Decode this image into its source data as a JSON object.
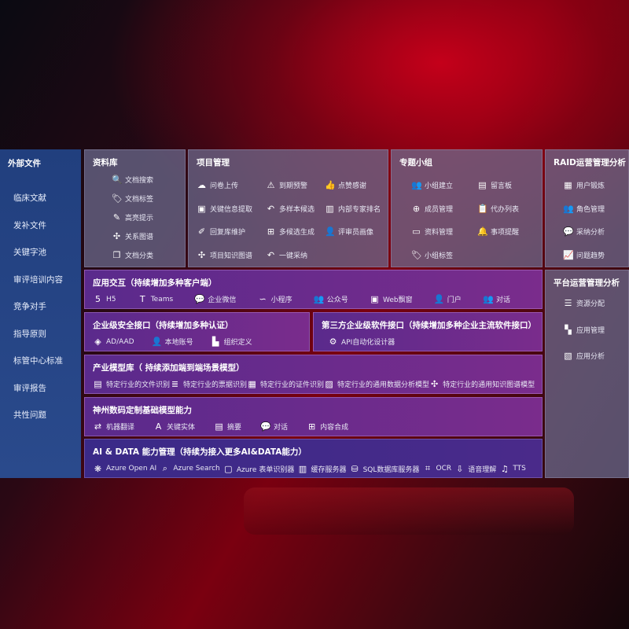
{
  "sidebar": {
    "title": "外部文件",
    "items": [
      "临床文献",
      "发补文件",
      "关键字池",
      "审评培训内容",
      "竞争对手",
      "指导原则",
      "标管中心标准",
      "审评报告",
      "共性问题"
    ]
  },
  "library": {
    "title": "资料库",
    "items": [
      {
        "icon": "doc-search-icon",
        "label": "文档搜索"
      },
      {
        "icon": "tag-icon",
        "label": "文档标签"
      },
      {
        "icon": "pen-icon",
        "label": "高亮提示"
      },
      {
        "icon": "graph-icon",
        "label": "关系图谱"
      },
      {
        "icon": "docs-icon",
        "label": "文档分类"
      }
    ]
  },
  "project": {
    "title": "项目管理",
    "items": [
      {
        "icon": "cloud-upload-icon",
        "label": "问卷上传"
      },
      {
        "icon": "alarm-icon",
        "label": "到期预警"
      },
      {
        "icon": "thumbs-up-icon",
        "label": "点赞感谢"
      },
      {
        "icon": "window-icon",
        "label": "关键信息提取"
      },
      {
        "icon": "reply-icon",
        "label": "多样本候选"
      },
      {
        "icon": "ranking-icon",
        "label": "内部专家排名"
      },
      {
        "icon": "edit-icon",
        "label": "回复库维护"
      },
      {
        "icon": "puzzle-icon",
        "label": "多候选生成"
      },
      {
        "icon": "user-icon",
        "label": "评审员画像"
      },
      {
        "icon": "graph-icon",
        "label": "项目知识图谱"
      },
      {
        "icon": "reply-icon",
        "label": "一键采纳"
      }
    ]
  },
  "group": {
    "title": "专题小组",
    "items": [
      {
        "icon": "users-icon",
        "label": "小组建立"
      },
      {
        "icon": "bbs-icon",
        "label": "留言板"
      },
      {
        "icon": "user-add-icon",
        "label": "成员管理"
      },
      {
        "icon": "clipboard-icon",
        "label": "代办列表"
      },
      {
        "icon": "folder-icon",
        "label": "资料管理"
      },
      {
        "icon": "bell-icon",
        "label": "事项提醒"
      },
      {
        "icon": "tag-icon",
        "label": "小组标签"
      }
    ]
  },
  "raid": {
    "title": "RAID运营管理分析",
    "items": [
      {
        "icon": "id-card-icon",
        "label": "用户锻炼"
      },
      {
        "icon": "users-icon",
        "label": "角色管理"
      },
      {
        "icon": "qa-icon",
        "label": "采纳分析"
      },
      {
        "icon": "trend-icon",
        "label": "问题趋势"
      }
    ]
  },
  "platform": {
    "title": "平台运营管理分析",
    "items": [
      {
        "icon": "list-icon",
        "label": "资源分配"
      },
      {
        "icon": "apps-icon",
        "label": "应用管理"
      },
      {
        "icon": "chart-icon",
        "label": "应用分析"
      }
    ]
  },
  "interaction": {
    "title": "应用交互（持续增加多种客户端）",
    "items": [
      {
        "icon": "html5-icon",
        "label": "H5"
      },
      {
        "icon": "teams-icon",
        "label": "Teams"
      },
      {
        "icon": "wecom-icon",
        "label": "企业微信"
      },
      {
        "icon": "miniprogram-icon",
        "label": "小程序"
      },
      {
        "icon": "users-icon",
        "label": "公众号"
      },
      {
        "icon": "window-icon",
        "label": "Web飘窗"
      },
      {
        "icon": "portal-icon",
        "label": "门户"
      },
      {
        "icon": "chat-users-icon",
        "label": "对话"
      }
    ]
  },
  "security": {
    "title": "企业级安全接口（持续增加多种认证）",
    "items": [
      {
        "icon": "diamond-icon",
        "label": "AD/AAD"
      },
      {
        "icon": "user-lock-icon",
        "label": "本地账号"
      },
      {
        "icon": "org-icon",
        "label": "组织定义"
      }
    ]
  },
  "thirdparty": {
    "title": "第三方企业级软件接口（持续增加多种企业主流软件接口）",
    "items": [
      {
        "icon": "gear-icon",
        "label": "API自动化设计器"
      }
    ]
  },
  "industry": {
    "title": "产业模型库（ 持续添加端到端场景模型）",
    "items": [
      {
        "icon": "file-icon",
        "label": "特定行业的文件识别"
      },
      {
        "icon": "receipt-icon",
        "label": "特定行业的票据识别"
      },
      {
        "icon": "id-card-icon",
        "label": "特定行业的证件识别"
      },
      {
        "icon": "image-icon",
        "label": "特定行业的通用数据分析模型"
      },
      {
        "icon": "graph-icon",
        "label": "特定行业的通用知识图谱模型"
      }
    ]
  },
  "base": {
    "title": "神州数码定制基础模型能力",
    "items": [
      {
        "icon": "translate-icon",
        "label": "机器翻译"
      },
      {
        "icon": "entity-icon",
        "label": "关键实体"
      },
      {
        "icon": "summary-icon",
        "label": "摘要"
      },
      {
        "icon": "chat-icon",
        "label": "对话"
      },
      {
        "icon": "puzzle-icon",
        "label": "内容合成"
      }
    ]
  },
  "aidata": {
    "title": "AI & DATA 能力管理（持续为接入更多AI&DATA能力）",
    "items": [
      {
        "icon": "openai-icon",
        "label": "Azure Open AI"
      },
      {
        "icon": "search-doc-icon",
        "label": "Azure Search"
      },
      {
        "icon": "form-icon",
        "label": "Azure 表单识别器"
      },
      {
        "icon": "cache-icon",
        "label": "缓存服务器"
      },
      {
        "icon": "database-icon",
        "label": "SQL数据库服务器"
      },
      {
        "icon": "ocr-icon",
        "label": "OCR"
      },
      {
        "icon": "voice-icon",
        "label": "语音理解"
      },
      {
        "icon": "tts-icon",
        "label": "TTS"
      }
    ]
  }
}
